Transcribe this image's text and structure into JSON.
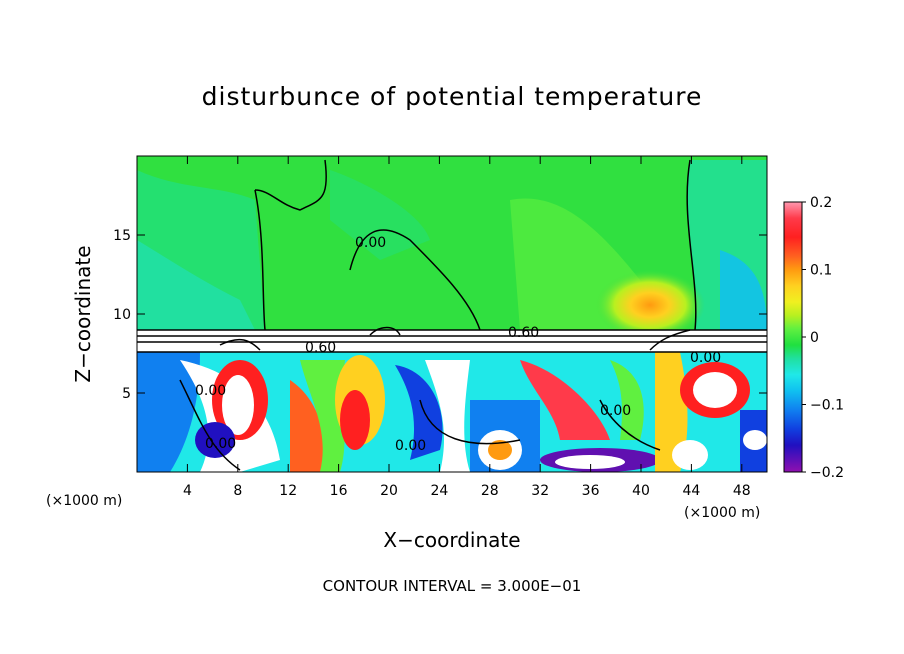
{
  "chart_data": {
    "type": "heatmap",
    "title": "disturbunce of potential temperature",
    "xlabel": "X−coordinate",
    "ylabel": "Z−coordinate",
    "x_unit": "(×1000 m)",
    "x_unit_right": "(×1000 m)",
    "xlim": [
      0,
      50
    ],
    "ylim": [
      0,
      20
    ],
    "x_ticks": [
      "4",
      "8",
      "12",
      "16",
      "20",
      "24",
      "28",
      "32",
      "36",
      "40",
      "44",
      "48"
    ],
    "y_ticks": [
      "5",
      "10",
      "15"
    ],
    "colorbar": {
      "min": -0.2,
      "max": 0.2,
      "tick_labels": [
        "0.2",
        "0.1",
        "0",
        "−0.1",
        "−0.2"
      ],
      "colors": [
        "#ff99b0",
        "#ff3a4a",
        "#ff2020",
        "#ff6020",
        "#ff9a10",
        "#ffd020",
        "#f0f020",
        "#b8f020",
        "#60f040",
        "#20e040",
        "#20e0a0",
        "#20e8e8",
        "#10c0f0",
        "#1080f0",
        "#1040e0",
        "#2010c0",
        "#6010b0",
        "#9010b0"
      ]
    },
    "contour_labels": [
      "0.00",
      "0.60",
      "0.60",
      "0.00",
      "0.00",
      "0.00",
      "0.00",
      "0.00"
    ],
    "footer": "CONTOUR INTERVAL = 3.000E−01"
  }
}
